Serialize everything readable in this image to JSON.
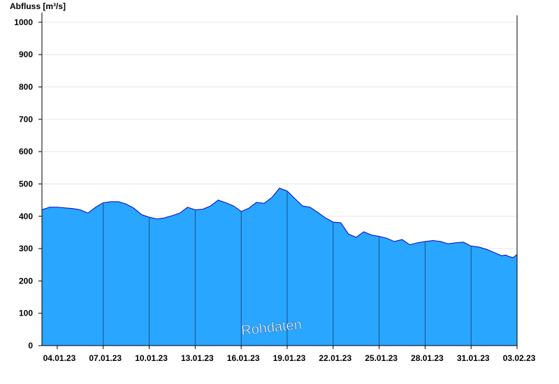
{
  "chart_data": {
    "type": "area",
    "ylabel": "Abfluss [m³/s]",
    "ylim": [
      0,
      1030
    ],
    "yticks": [
      0,
      100,
      200,
      300,
      400,
      500,
      600,
      700,
      800,
      900,
      1000
    ],
    "xlim": [
      "2023-01-03T00:00",
      "2023-02-03T00:00"
    ],
    "xtick_labels": [
      "04.01.23",
      "07.01.23",
      "10.01.23",
      "13.01.23",
      "16.01.23",
      "19.01.23",
      "22.01.23",
      "25.01.23",
      "28.01.23",
      "31.01.23",
      "03.02.23"
    ],
    "xtick_dates": [
      "2023-01-04",
      "2023-01-07",
      "2023-01-10",
      "2023-01-13",
      "2023-01-16",
      "2023-01-19",
      "2023-01-22",
      "2023-01-25",
      "2023-01-28",
      "2023-01-31",
      "2023-02-03"
    ],
    "watermark": "Rohdaten",
    "fill_color": "#29a6ff",
    "line_color": "#0000cc",
    "grid": "horizontal",
    "series": [
      {
        "x": [
          "2023-01-03T00:00",
          "2023-01-03T12:00",
          "2023-01-04T00:00",
          "2023-01-04T12:00",
          "2023-01-05T00:00",
          "2023-01-05T12:00",
          "2023-01-06T00:00",
          "2023-01-06T12:00",
          "2023-01-07T00:00",
          "2023-01-07T12:00",
          "2023-01-08T00:00",
          "2023-01-08T12:00",
          "2023-01-09T00:00",
          "2023-01-09T12:00",
          "2023-01-10T00:00",
          "2023-01-10T12:00",
          "2023-01-11T00:00",
          "2023-01-11T12:00",
          "2023-01-12T00:00",
          "2023-01-12T12:00",
          "2023-01-13T00:00",
          "2023-01-13T12:00",
          "2023-01-14T00:00",
          "2023-01-14T12:00",
          "2023-01-15T00:00",
          "2023-01-15T12:00",
          "2023-01-16T00:00",
          "2023-01-16T12:00",
          "2023-01-17T00:00",
          "2023-01-17T12:00",
          "2023-01-18T00:00",
          "2023-01-18T12:00",
          "2023-01-19T00:00",
          "2023-01-19T12:00",
          "2023-01-20T00:00",
          "2023-01-20T12:00",
          "2023-01-21T00:00",
          "2023-01-21T12:00",
          "2023-01-22T00:00",
          "2023-01-22T12:00",
          "2023-01-23T00:00",
          "2023-01-23T12:00",
          "2023-01-24T00:00",
          "2023-01-24T12:00",
          "2023-01-25T00:00",
          "2023-01-25T12:00",
          "2023-01-26T00:00",
          "2023-01-26T12:00",
          "2023-01-27T00:00",
          "2023-01-27T12:00",
          "2023-01-28T00:00",
          "2023-01-28T12:00",
          "2023-01-29T00:00",
          "2023-01-29T12:00",
          "2023-01-30T00:00",
          "2023-01-30T12:00",
          "2023-01-31T00:00",
          "2023-01-31T12:00",
          "2023-02-01T00:00",
          "2023-02-01T12:00",
          "2023-02-02T00:00",
          "2023-02-02T06:00",
          "2023-02-02T12:00",
          "2023-02-02T18:00",
          "2023-02-03T00:00"
        ],
        "y": [
          420,
          428,
          428,
          426,
          424,
          420,
          410,
          428,
          442,
          445,
          445,
          438,
          425,
          405,
          397,
          392,
          395,
          402,
          410,
          428,
          420,
          422,
          432,
          450,
          442,
          432,
          415,
          425,
          443,
          440,
          458,
          487,
          478,
          455,
          432,
          428,
          412,
          395,
          382,
          380,
          345,
          335,
          352,
          342,
          338,
          332,
          322,
          328,
          312,
          318,
          322,
          325,
          322,
          315,
          318,
          320,
          308,
          305,
          298,
          288,
          278,
          280,
          275,
          272,
          282
        ]
      }
    ]
  }
}
